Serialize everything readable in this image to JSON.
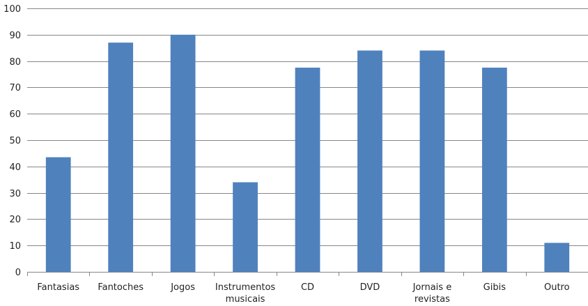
{
  "chart_data": {
    "type": "bar",
    "title": "",
    "xlabel": "",
    "ylabel": "",
    "categories": [
      [
        "Fantasias"
      ],
      [
        "Fantoches"
      ],
      [
        "Jogos"
      ],
      [
        "Instrumentos",
        "musicais"
      ],
      [
        "CD"
      ],
      [
        "DVD"
      ],
      [
        "Jornais e",
        "revistas"
      ],
      [
        "Gibis"
      ],
      [
        "Outro"
      ]
    ],
    "values": [
      43.5,
      87,
      90,
      34,
      77.5,
      84,
      84,
      77.5,
      11
    ],
    "ylim": [
      0,
      100
    ],
    "yticks": [
      0,
      10,
      20,
      30,
      40,
      50,
      60,
      70,
      80,
      90,
      100
    ],
    "grid": true,
    "legend": "none",
    "colors": {
      "bar": "#4F81BD",
      "grid": "#868686",
      "axis": "#868686"
    }
  }
}
